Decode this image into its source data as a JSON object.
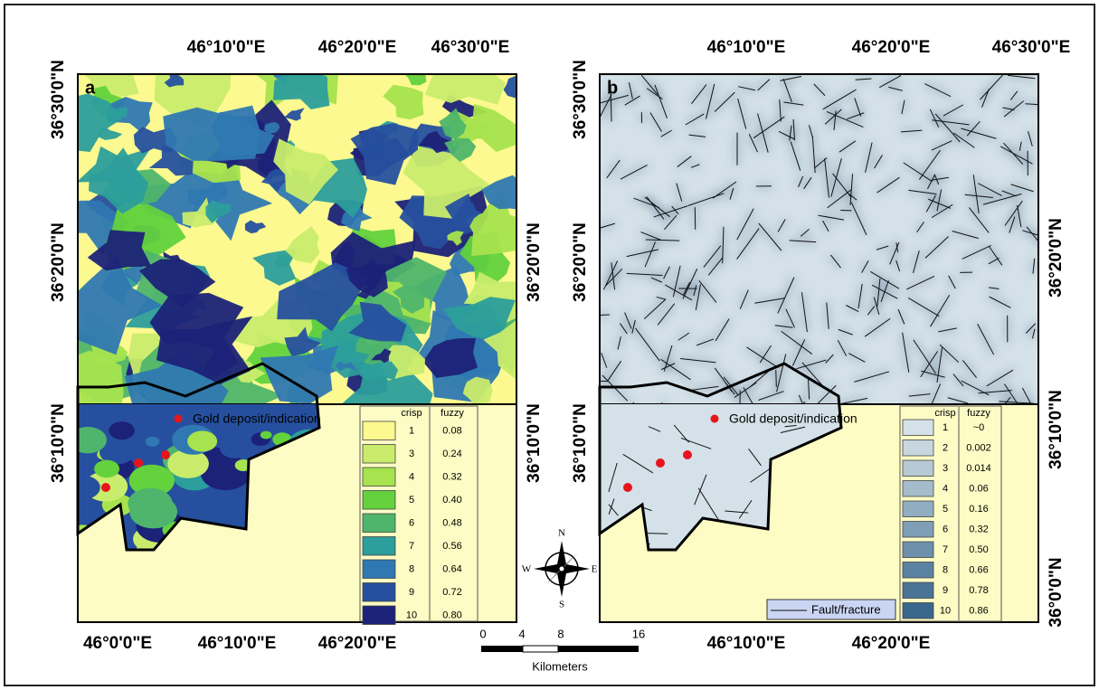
{
  "panels": [
    {
      "label": "a",
      "top_labels": [
        "46°10'0\"E",
        "46°20'0\"E",
        "46°30'0\"E"
      ],
      "left_labels": [
        "36°30'0\"N",
        "36°20'0\"N",
        "36°10'0\"N"
      ],
      "right_labels": [
        "36°20'0\"N",
        "36°10'0\"N"
      ],
      "bottom_labels": [
        "46°0'0\"E",
        "46°10'0\"E",
        "46°20'0\"E"
      ],
      "legend": {
        "marker": "Gold deposit/indication",
        "headers": [
          "crisp",
          "fuzzy"
        ],
        "rows": [
          [
            "1",
            "0.08"
          ],
          [
            "3",
            "0.24"
          ],
          [
            "4",
            "0.32"
          ],
          [
            "5",
            "0.40"
          ],
          [
            "6",
            "0.48"
          ],
          [
            "7",
            "0.56"
          ],
          [
            "8",
            "0.64"
          ],
          [
            "9",
            "0.72"
          ],
          [
            "10",
            "0.80"
          ]
        ]
      }
    },
    {
      "label": "b",
      "top_labels": [
        "46°10'0\"E",
        "46°20'0\"E",
        "46°30'0\"E"
      ],
      "left_labels": [
        "36°30'0\"N",
        "36°20'0\"N",
        "36°10'0\"N"
      ],
      "right_labels": [
        "36°20'0\"N",
        "36°10'0\"N",
        "36°0'0\"N"
      ],
      "bottom_labels": [
        "46°10'0\"E",
        "46°20'0\"E"
      ],
      "legend": {
        "marker": "Gold deposit/indication",
        "headers": [
          "crisp",
          "fuzzy"
        ],
        "rows": [
          [
            "1",
            "~0"
          ],
          [
            "2",
            "0.002"
          ],
          [
            "3",
            "0.014"
          ],
          [
            "4",
            "0.06"
          ],
          [
            "5",
            "0.16"
          ],
          [
            "6",
            "0.32"
          ],
          [
            "7",
            "0.50"
          ],
          [
            "8",
            "0.66"
          ],
          [
            "9",
            "0.78"
          ],
          [
            "10",
            "0.86"
          ]
        ]
      },
      "fault_label": "Fault/fracture"
    }
  ],
  "scale_bar": {
    "ticks": [
      "0",
      "4",
      "8",
      "16"
    ],
    "unit": "Kilometers"
  },
  "compass": {
    "n": "N",
    "s": "S",
    "e": "E",
    "w": "W"
  }
}
